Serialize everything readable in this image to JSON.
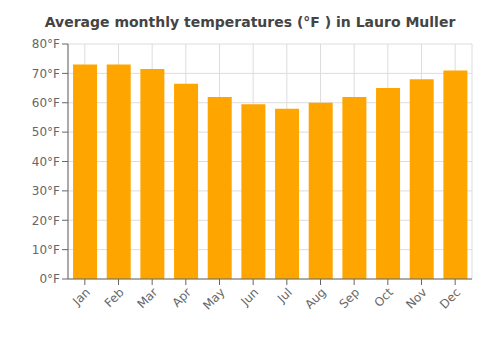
{
  "chart_data": {
    "type": "bar",
    "title": "Average monthly temperatures (°F ) in Lauro Muller",
    "categories": [
      "Jan",
      "Feb",
      "Mar",
      "Apr",
      "May",
      "Jun",
      "Jul",
      "Aug",
      "Sep",
      "Oct",
      "Nov",
      "Dec"
    ],
    "values": [
      73,
      73,
      71.5,
      66.5,
      62,
      59.5,
      58,
      60,
      62,
      65,
      68,
      71
    ],
    "color": "#FFA500",
    "ylim": [
      0,
      80
    ],
    "yticks": [
      {
        "value": 0,
        "label": "0°F"
      },
      {
        "value": 10,
        "label": "10°F"
      },
      {
        "value": 20,
        "label": "20°F"
      },
      {
        "value": 30,
        "label": "30°F"
      },
      {
        "value": 40,
        "label": "40°F"
      },
      {
        "value": 50,
        "label": "50°F"
      },
      {
        "value": 60,
        "label": "60°F"
      },
      {
        "value": 70,
        "label": "70°F"
      },
      {
        "value": 80,
        "label": "80°F"
      }
    ],
    "grid": true
  }
}
